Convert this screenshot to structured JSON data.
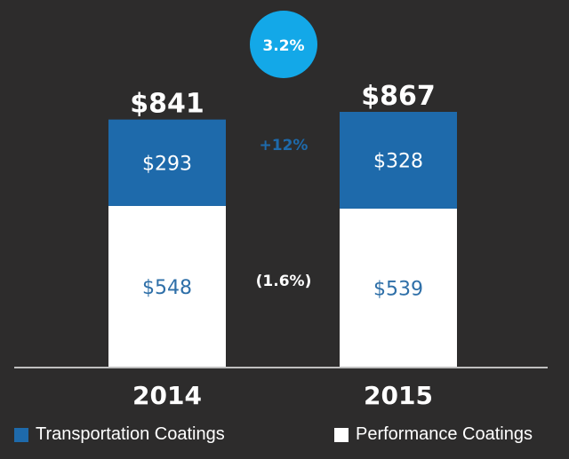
{
  "chart_data": {
    "type": "bar",
    "stacked": true,
    "title": "",
    "xlabel": "",
    "ylabel": "",
    "categories": [
      "2014",
      "2015"
    ],
    "series": [
      {
        "name": "Performance Coatings",
        "values": [
          548,
          539
        ],
        "color": "#ffffff",
        "label_color": "#2e6fa8",
        "labels": [
          "$548",
          "$539"
        ]
      },
      {
        "name": "Transportation Coatings",
        "values": [
          293,
          328
        ],
        "color": "#1e6aab",
        "label_color": "#ffffff",
        "labels": [
          "$293",
          "$328"
        ]
      }
    ],
    "totals": [
      841,
      867
    ],
    "total_labels": [
      "$841",
      "$867"
    ],
    "growth": {
      "total": "3.2%",
      "transportation": "+12%",
      "performance": "(1.6%)"
    },
    "colors": {
      "background": "#2d2c2c",
      "bubble": "#13a8e8",
      "transport_growth_text": "#1e6aab",
      "axis": "#bfbfbf"
    },
    "legend": [
      "Transportation Coatings",
      "Performance Coatings"
    ],
    "legend_position": "bottom",
    "grid": false
  }
}
